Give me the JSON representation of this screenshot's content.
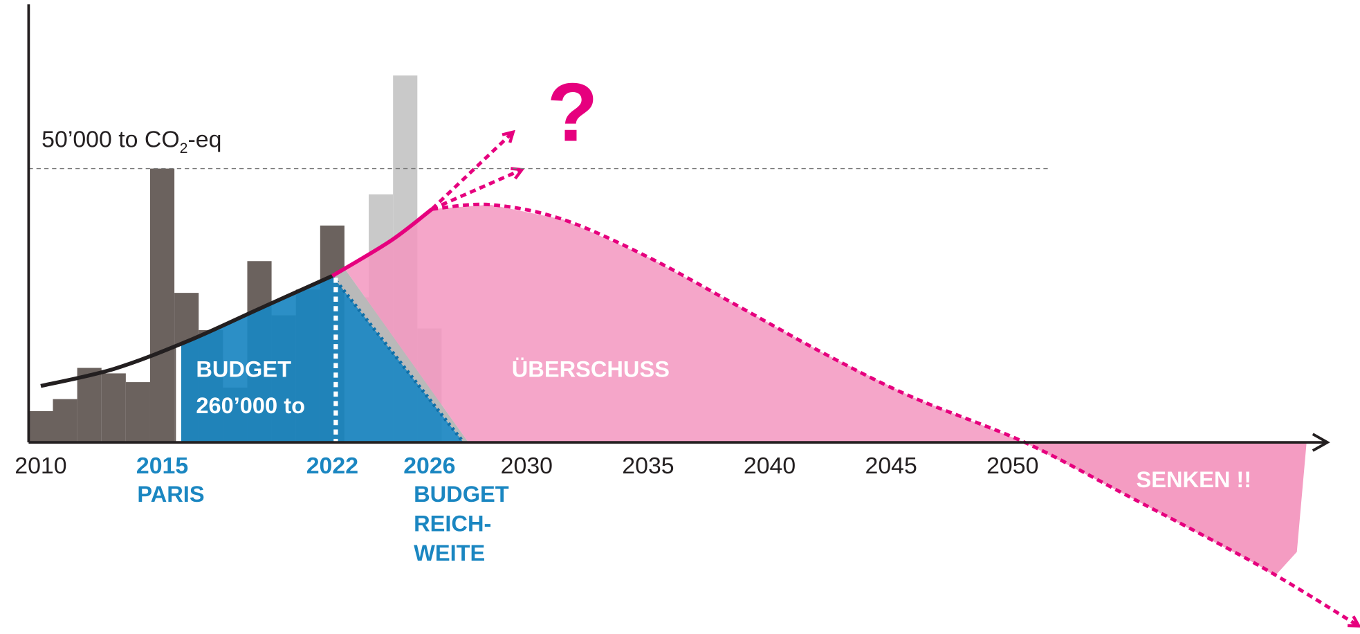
{
  "chart_data": {
    "type": "budget-diagram",
    "xlim": [
      2009.5,
      2064.3
    ],
    "ylim": [
      -35000,
      80000
    ],
    "xticks": [
      2010,
      2015,
      2022,
      2026,
      2030,
      2035,
      2040,
      2045,
      2050
    ],
    "xtick_colors": [
      "#231f20",
      "#1a86c1",
      "#1a86c1",
      "#1a86c1",
      "#231f20",
      "#231f20",
      "#231f20",
      "#231f20",
      "#231f20"
    ],
    "axis_color": "#231f20",
    "reference": {
      "value": 50000,
      "label": [
        "50’000 to CO",
        "2",
        "-eq"
      ],
      "color": "#777777"
    },
    "bars": {
      "x": [
        2010,
        2011,
        2012,
        2013,
        2014,
        2015,
        2016,
        2017,
        2018,
        2019,
        2020,
        2021,
        2022,
        2023,
        2024,
        2025,
        2026
      ],
      "series": [
        {
          "color": "#6b625e",
          "values": [
            5700,
            7900,
            13600,
            12600,
            11000,
            50000,
            27300,
            20500,
            10000,
            33100,
            23200,
            27900,
            39600,
            null,
            null,
            null,
            null
          ]
        },
        {
          "color": "#c9c9c9",
          "values": [
            null,
            null,
            null,
            null,
            null,
            null,
            null,
            null,
            null,
            null,
            null,
            null,
            null,
            26500,
            45300,
            67000,
            20800
          ]
        }
      ]
    },
    "trend_line": {
      "color": "#231f20",
      "x": [
        2010,
        2013,
        2016,
        2019,
        2022
      ],
      "values": [
        10300,
        13400,
        18400,
        24400,
        30400
      ]
    },
    "budget_area": {
      "color": "#1a86c1",
      "x": [
        2015.6,
        2016,
        2019,
        2022,
        2027.4
      ],
      "values": [
        17700,
        18400,
        24400,
        30400,
        0
      ]
    },
    "growth_line": {
      "color": "#e6007e",
      "x": [
        2022,
        2024.4,
        2026.1
      ],
      "values": [
        30400,
        36800,
        42600
      ]
    },
    "scenario_arrows": [
      {
        "x": [
          2026.1,
          2029.4
        ],
        "values": [
          42600,
          56500
        ]
      },
      {
        "x": [
          2026.1,
          2029.75
        ],
        "values": [
          42600,
          49700
        ]
      }
    ],
    "reduction_path": {
      "color": "#e6007e",
      "x": [
        2026.1,
        2028.5,
        2031.5,
        2035.1,
        2038.7,
        2042.25,
        2045.8,
        2050.5,
        2054.75,
        2060.1,
        2064.2
      ],
      "values": [
        42600,
        43400,
        40700,
        33600,
        24900,
        16200,
        8400,
        0,
        -9800,
        -22400,
        -33400
      ]
    },
    "surplus_area": {
      "color": "#f397bf",
      "x": [
        2022.5,
        2024.4,
        2026.1,
        2028.5,
        2031.5,
        2035.1,
        2038.7,
        2042.25,
        2045.8,
        2050.5,
        2027.6
      ],
      "values": [
        31800,
        36800,
        42600,
        43400,
        40700,
        33600,
        24900,
        16200,
        8400,
        0,
        0
      ]
    },
    "sink_area": {
      "color": "#f397bf",
      "x": [
        2050.5,
        2054.75,
        2060.1,
        2060.8,
        2061.7,
        2062.1
      ],
      "values": [
        0,
        -9800,
        -22400,
        -24400,
        -20000,
        0
      ]
    },
    "annotations": {
      "budget": [
        "BUDGET",
        "260’000 to"
      ],
      "surplus": "ÜBERSCHUSS",
      "sinks": "SENKEN !!",
      "question": "?",
      "paris": "PARIS",
      "reach": [
        "BUDGET",
        "REICH-",
        "WEITE"
      ]
    }
  }
}
